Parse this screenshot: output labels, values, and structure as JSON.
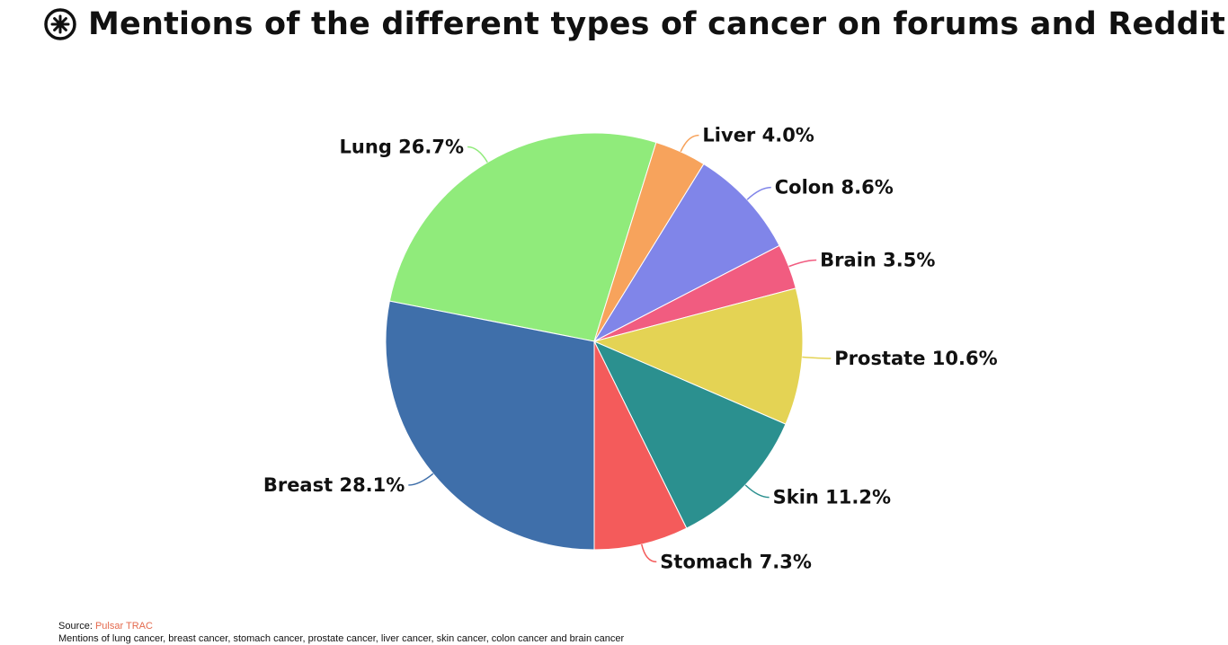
{
  "header": {
    "title": "Mentions of the different types of cancer on forums and Reddit",
    "logo_icon": "pulsar-logo-icon"
  },
  "chart_data": {
    "type": "pie",
    "title": "Mentions of the different types of cancer on forums and Reddit",
    "slices": [
      {
        "label": "Lung",
        "value": 26.7,
        "display": "Lung 26.7%",
        "color": "#90EB7B"
      },
      {
        "label": "Liver",
        "value": 4.0,
        "display": "Liver 4.0%",
        "color": "#F7A35C"
      },
      {
        "label": "Colon",
        "value": 8.6,
        "display": "Colon 8.6%",
        "color": "#8085E9"
      },
      {
        "label": "Brain",
        "value": 3.5,
        "display": "Brain 3.5%",
        "color": "#F15C80"
      },
      {
        "label": "Prostate",
        "value": 10.6,
        "display": "Prostate 10.6%",
        "color": "#E4D354"
      },
      {
        "label": "Skin",
        "value": 11.2,
        "display": "Skin 11.2%",
        "color": "#2B908F"
      },
      {
        "label": "Stomach",
        "value": 7.3,
        "display": "Stomach 7.3%",
        "color": "#F45B5B"
      },
      {
        "label": "Breast",
        "value": 28.1,
        "display": "Breast 28.1%",
        "color": "#3F6FAA"
      }
    ]
  },
  "footer": {
    "source_prefix": "Source: ",
    "source_name": "Pulsar TRAC",
    "note": "Mentions of lung cancer, breast cancer, stomach cancer, prostate cancer, liver cancer, skin cancer, colon cancer and brain cancer"
  }
}
